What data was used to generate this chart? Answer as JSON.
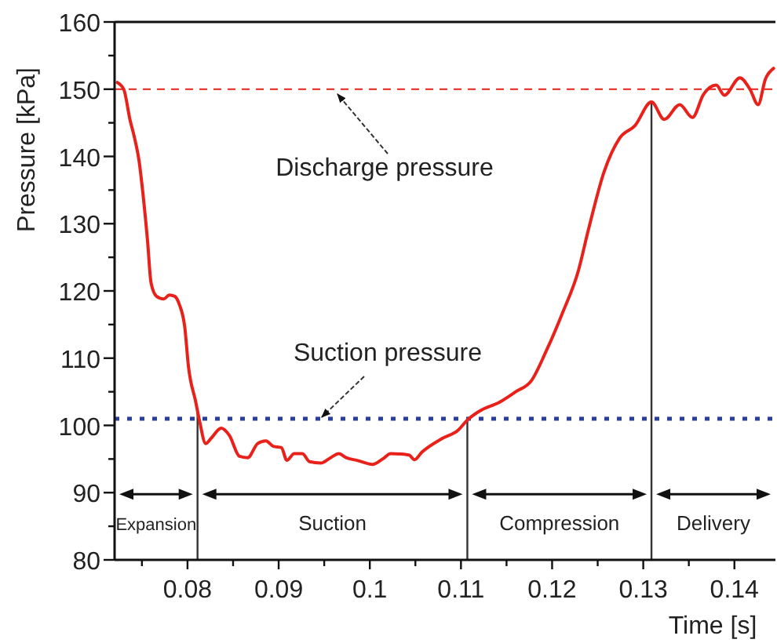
{
  "chart_data": {
    "type": "line",
    "xlabel": "Time [s]",
    "ylabel": "Pressure [kPa]",
    "xlim": [
      0.072,
      0.1445
    ],
    "ylim": [
      80,
      160
    ],
    "xticks": [
      {
        "value": 0.075,
        "label": null
      },
      0.08,
      {
        "value": 0.085,
        "label": null
      },
      0.09,
      {
        "value": 0.095,
        "label": null
      },
      0.1,
      {
        "value": 0.105,
        "label": null
      },
      0.11,
      {
        "value": 0.115,
        "label": null
      },
      0.12,
      {
        "value": 0.125,
        "label": null
      },
      0.13,
      {
        "value": 0.135,
        "label": null
      },
      0.14
    ],
    "yticks": [
      80,
      {
        "value": 85,
        "label": null
      },
      90,
      {
        "value": 95,
        "label": null
      },
      100,
      {
        "value": 105,
        "label": null
      },
      110,
      {
        "value": 115,
        "label": null
      },
      120,
      {
        "value": 125,
        "label": null
      },
      130,
      {
        "value": 135,
        "label": null
      },
      140,
      {
        "value": 145,
        "label": null
      },
      150,
      {
        "value": 155,
        "label": null
      },
      160
    ],
    "marker": "none",
    "line_style": "solid",
    "series": [
      {
        "color": "#e8211b",
        "x": [
          0.0723,
          0.073,
          0.0737,
          0.0742,
          0.0747,
          0.0751,
          0.0756,
          0.076,
          0.0766,
          0.0774,
          0.078,
          0.0786,
          0.0791,
          0.0797,
          0.0801,
          0.0809,
          0.0813,
          0.082,
          0.0826,
          0.0837,
          0.0846,
          0.0857,
          0.0866,
          0.0877,
          0.0886,
          0.0894,
          0.0903,
          0.0909,
          0.0917,
          0.0926,
          0.0934,
          0.0946,
          0.0957,
          0.0966,
          0.0974,
          0.0986,
          0.1003,
          0.1014,
          0.1023,
          0.1043,
          0.1049,
          0.1057,
          0.108,
          0.1097,
          0.1107,
          0.112,
          0.1143,
          0.116,
          0.1177,
          0.1194,
          0.1211,
          0.1229,
          0.124,
          0.1257,
          0.1274,
          0.1291,
          0.1309,
          0.1323,
          0.134,
          0.1354,
          0.1366,
          0.138,
          0.1389,
          0.1406,
          0.1417,
          0.1426,
          0.1434,
          0.1443
        ],
        "values": [
          151,
          150,
          145.4,
          142.7,
          139.2,
          134.6,
          127.7,
          121.2,
          119.2,
          118.8,
          119.4,
          119.2,
          118,
          114.6,
          108.8,
          103.5,
          100.8,
          97.3,
          98.1,
          99.6,
          98.5,
          95.4,
          95.2,
          97.3,
          97.7,
          96.9,
          96.7,
          94.8,
          95.8,
          95.8,
          94.6,
          94.4,
          95.2,
          95.8,
          95.2,
          94.8,
          94.2,
          95,
          95.8,
          95.6,
          94.9,
          96,
          98.1,
          99.3,
          100.8,
          102.1,
          103.5,
          105,
          106.6,
          111.2,
          116.6,
          123.1,
          129.2,
          137.7,
          142.7,
          144.6,
          148.1,
          145.5,
          147.7,
          145.8,
          149.2,
          150.6,
          149.1,
          151.7,
          150,
          147.7,
          151.5,
          153.1
        ]
      }
    ],
    "ref_lines": [
      {
        "axis": "y",
        "value": 150,
        "label": "Discharge pressure",
        "color": "#e8211b",
        "line_style": "dashed"
      },
      {
        "axis": "y",
        "value": 101,
        "label": "Suction pressure",
        "color": "#2b3f9a",
        "line_style": "dotted"
      },
      {
        "axis": "x",
        "value": 0.0811,
        "color": "#333333",
        "line_style": "solid"
      },
      {
        "axis": "x",
        "value": 0.1107,
        "color": "#333333",
        "line_style": "solid"
      },
      {
        "axis": "x",
        "value": 0.1309,
        "color": "#333333",
        "line_style": "solid"
      }
    ],
    "annotations": [
      "Expansion",
      "Suction",
      "Compression",
      "Delivery"
    ]
  }
}
